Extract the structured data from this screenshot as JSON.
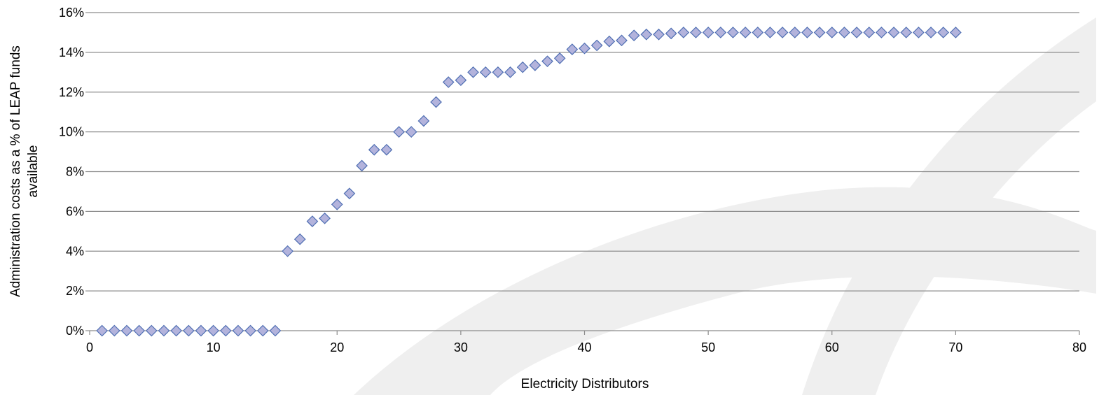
{
  "chart_data": {
    "type": "scatter",
    "title": "",
    "xlabel": "Electricity Distributors",
    "ylabel_line1": "Administration costs as a % of LEAP funds",
    "ylabel_line2": "available",
    "xlim": [
      0,
      80
    ],
    "ylim": [
      0,
      16
    ],
    "x_ticks": [
      0,
      10,
      20,
      30,
      40,
      50,
      60,
      70,
      80
    ],
    "y_ticks": [
      0,
      2,
      4,
      6,
      8,
      10,
      12,
      14,
      16
    ],
    "y_tick_labels": [
      "0%",
      "2%",
      "4%",
      "6%",
      "8%",
      "10%",
      "12%",
      "14%",
      "16%"
    ],
    "grid": "horizontal",
    "legend": "none",
    "marker": "diamond",
    "colors": {
      "marker_fill": "#b3b3dc",
      "marker_stroke": "#4f6fb3",
      "grid": "#8c8c8c",
      "axis": "#8c8c8c",
      "watermark": "#efefef"
    },
    "points": [
      [
        1,
        0
      ],
      [
        2,
        0
      ],
      [
        3,
        0
      ],
      [
        4,
        0
      ],
      [
        5,
        0
      ],
      [
        6,
        0
      ],
      [
        7,
        0
      ],
      [
        8,
        0
      ],
      [
        9,
        0
      ],
      [
        10,
        0
      ],
      [
        11,
        0
      ],
      [
        12,
        0
      ],
      [
        13,
        0
      ],
      [
        14,
        0
      ],
      [
        15,
        0
      ],
      [
        16,
        4.0
      ],
      [
        17,
        4.6
      ],
      [
        18,
        5.5
      ],
      [
        19,
        5.65
      ],
      [
        20,
        6.35
      ],
      [
        21,
        6.9
      ],
      [
        22,
        8.3
      ],
      [
        23,
        9.1
      ],
      [
        24,
        9.1
      ],
      [
        25,
        10.0
      ],
      [
        26,
        10.0
      ],
      [
        27,
        10.55
      ],
      [
        28,
        11.5
      ],
      [
        29,
        12.5
      ],
      [
        30,
        12.6
      ],
      [
        31,
        13.0
      ],
      [
        32,
        13.0
      ],
      [
        33,
        13.0
      ],
      [
        34,
        13.0
      ],
      [
        35,
        13.25
      ],
      [
        36,
        13.35
      ],
      [
        37,
        13.55
      ],
      [
        38,
        13.7
      ],
      [
        39,
        14.15
      ],
      [
        40,
        14.2
      ],
      [
        41,
        14.35
      ],
      [
        42,
        14.55
      ],
      [
        43,
        14.6
      ],
      [
        44,
        14.85
      ],
      [
        45,
        14.9
      ],
      [
        46,
        14.9
      ],
      [
        47,
        14.95
      ],
      [
        48,
        15
      ],
      [
        49,
        15
      ],
      [
        50,
        15
      ],
      [
        51,
        15
      ],
      [
        52,
        15
      ],
      [
        53,
        15
      ],
      [
        54,
        15
      ],
      [
        55,
        15
      ],
      [
        56,
        15
      ],
      [
        57,
        15
      ],
      [
        58,
        15
      ],
      [
        59,
        15
      ],
      [
        60,
        15
      ],
      [
        61,
        15
      ],
      [
        62,
        15
      ],
      [
        63,
        15
      ],
      [
        64,
        15
      ],
      [
        65,
        15
      ],
      [
        66,
        15
      ],
      [
        67,
        15
      ],
      [
        68,
        15
      ],
      [
        69,
        15
      ],
      [
        70,
        15
      ]
    ]
  }
}
